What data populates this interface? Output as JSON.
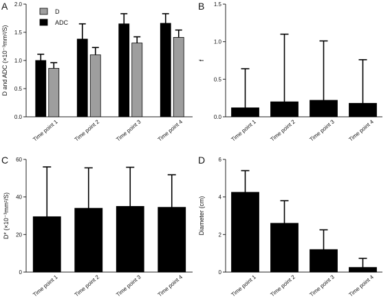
{
  "chart_data": [
    {
      "panel": "A",
      "type": "bar",
      "ylabel": "D and ADC (×10⁻³mm²/S)",
      "ylim": [
        0,
        2.0
      ],
      "yticks": [
        "0.0",
        "0.5",
        "1.0",
        "1.5",
        "2.0"
      ],
      "categories": [
        "Time point 1",
        "Time point 2",
        "Time point 3",
        "Time point 4"
      ],
      "series": [
        {
          "name": "ADC",
          "color": "#000000",
          "values": [
            1.0,
            1.38,
            1.65,
            1.66
          ],
          "errors": [
            0.11,
            0.27,
            0.18,
            0.17
          ]
        },
        {
          "name": "D",
          "color": "#9e9e9e",
          "values": [
            0.86,
            1.1,
            1.31,
            1.41
          ],
          "errors": [
            0.1,
            0.13,
            0.11,
            0.13
          ]
        }
      ],
      "legend": [
        "D",
        "ADC"
      ],
      "legend_placement": "top-left"
    },
    {
      "panel": "B",
      "type": "bar",
      "ylabel": "f",
      "ylim": [
        0,
        1.5
      ],
      "yticks": [
        "0.0",
        "0.5",
        "1.0",
        "1.5"
      ],
      "categories": [
        "Time point 1",
        "Time point 2",
        "Time point 3",
        "Time point 4"
      ],
      "series": [
        {
          "color": "#000000",
          "values": [
            0.12,
            0.2,
            0.22,
            0.18
          ],
          "errors": [
            0.52,
            0.9,
            0.79,
            0.58
          ]
        }
      ]
    },
    {
      "panel": "C",
      "type": "bar",
      "ylabel": "D* (×10⁻³mm²/S)",
      "ylim": [
        0,
        60
      ],
      "yticks": [
        "0",
        "20",
        "40",
        "60"
      ],
      "categories": [
        "Time point 1",
        "Time point 2",
        "Time point 3",
        "Time point 4"
      ],
      "series": [
        {
          "color": "#000000",
          "values": [
            29.5,
            34,
            35,
            34.5
          ],
          "errors": [
            26.5,
            21.5,
            20.8,
            17.3
          ]
        }
      ]
    },
    {
      "panel": "D",
      "type": "bar",
      "ylabel": "Diameter (cm)",
      "ylim": [
        0,
        6
      ],
      "yticks": [
        "0",
        "2",
        "4",
        "6"
      ],
      "categories": [
        "Time point 1",
        "Time point 2",
        "Time point 3",
        "Time point 4"
      ],
      "series": [
        {
          "color": "#000000",
          "values": [
            4.25,
            2.6,
            1.2,
            0.25
          ],
          "errors": [
            1.15,
            1.2,
            1.05,
            0.48
          ]
        }
      ]
    }
  ]
}
